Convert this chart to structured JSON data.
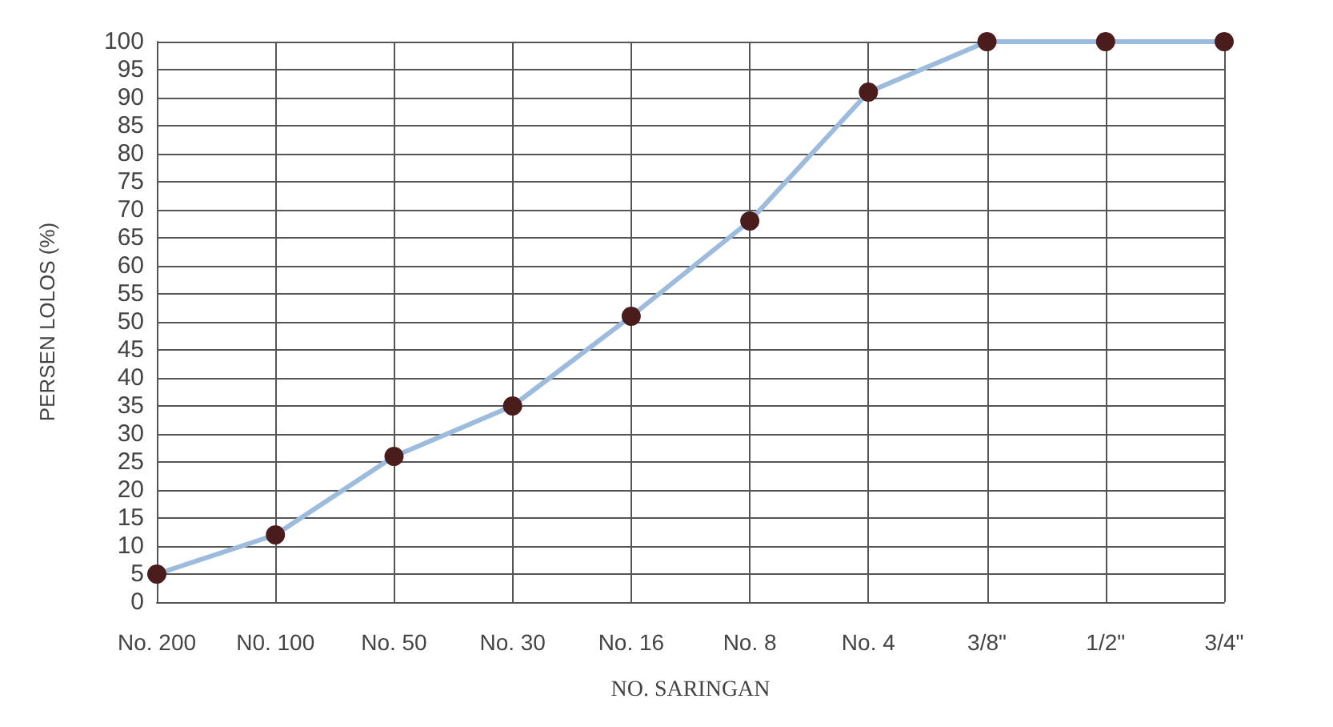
{
  "chart_data": {
    "type": "line",
    "xlabel": "NO. SARINGAN",
    "ylabel": "PERSEN LOLOS (%)",
    "categories": [
      "No. 200",
      "N0. 100",
      "No. 50",
      "No. 30",
      "No. 16",
      "No. 8",
      "No. 4",
      "3/8\"",
      "1/2\"",
      "3/4\""
    ],
    "series": [
      {
        "color": "#9dbbdd",
        "values": [
          5,
          12,
          26,
          35,
          51,
          68,
          91,
          100,
          100,
          100
        ]
      }
    ],
    "ylim": [
      0,
      100
    ],
    "yticks": [
      0,
      5,
      10,
      15,
      20,
      25,
      30,
      35,
      40,
      45,
      50,
      55,
      60,
      65,
      70,
      75,
      80,
      85,
      90,
      95,
      100
    ],
    "grid": true,
    "marker": "circle",
    "line_style": "solid"
  }
}
